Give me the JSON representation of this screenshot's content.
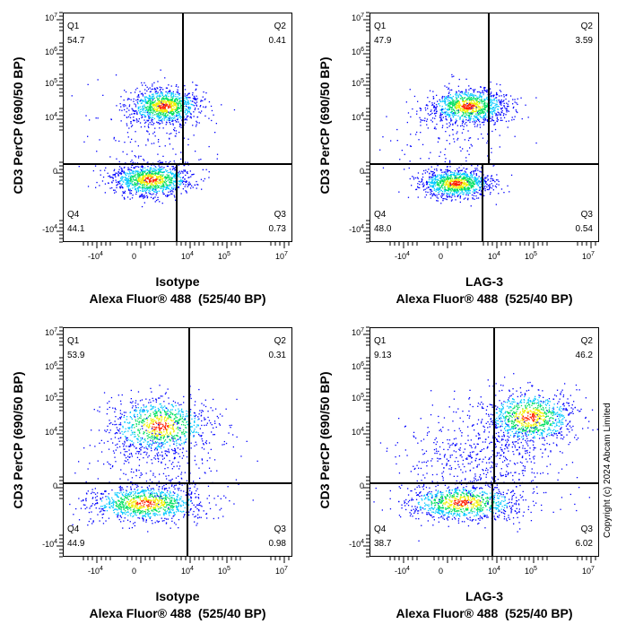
{
  "chart_data": [
    {
      "type": "scatter",
      "subtype": "flow-cytometry-density-plot",
      "xlabel": "Isotype",
      "xlabel2": "Alexa Fluor® 488  (525/40 BP)",
      "ylabel": "CD3 PerCP (690/50 BP)",
      "x_scale": "biexponential",
      "y_scale": "biexponential",
      "quadrants": [
        {
          "name": "Q1",
          "value": "54.7"
        },
        {
          "name": "Q2",
          "value": "0.41"
        },
        {
          "name": "Q3",
          "value": "0.73"
        },
        {
          "name": "Q4",
          "value": "44.1"
        }
      ]
    },
    {
      "type": "scatter",
      "subtype": "flow-cytometry-density-plot",
      "xlabel": "LAG-3",
      "xlabel2": "Alexa Fluor® 488  (525/40 BP)",
      "ylabel": "CD3 PerCP (690/50 BP)",
      "x_scale": "biexponential",
      "y_scale": "biexponential",
      "quadrants": [
        {
          "name": "Q1",
          "value": "47.9"
        },
        {
          "name": "Q2",
          "value": "3.59"
        },
        {
          "name": "Q3",
          "value": "0.54"
        },
        {
          "name": "Q4",
          "value": "48.0"
        }
      ]
    },
    {
      "type": "scatter",
      "subtype": "flow-cytometry-density-plot",
      "xlabel": "Isotype",
      "xlabel2": "Alexa Fluor® 488  (525/40 BP)",
      "ylabel": "CD3 PerCP (690/50 BP)",
      "x_scale": "biexponential",
      "y_scale": "biexponential",
      "quadrants": [
        {
          "name": "Q1",
          "value": "53.9"
        },
        {
          "name": "Q2",
          "value": "0.31"
        },
        {
          "name": "Q3",
          "value": "0.98"
        },
        {
          "name": "Q4",
          "value": "44.9"
        }
      ]
    },
    {
      "type": "scatter",
      "subtype": "flow-cytometry-density-plot",
      "xlabel": "LAG-3",
      "xlabel2": "Alexa Fluor® 488  (525/40 BP)",
      "ylabel": "CD3 PerCP (690/50 BP)",
      "x_scale": "biexponential",
      "y_scale": "biexponential",
      "quadrants": [
        {
          "name": "Q1",
          "value": "9.13"
        },
        {
          "name": "Q2",
          "value": "46.2"
        },
        {
          "name": "Q3",
          "value": "6.02"
        },
        {
          "name": "Q4",
          "value": "38.7"
        }
      ]
    }
  ],
  "x_ticks": [
    {
      "base": "-10",
      "exp": "4"
    },
    {
      "base": "0",
      "exp": ""
    },
    {
      "base": "10",
      "exp": "4"
    },
    {
      "base": "10",
      "exp": "5"
    },
    {
      "base": "10",
      "exp": "7"
    }
  ],
  "y_ticks": [
    {
      "base": "10",
      "exp": "7"
    },
    {
      "base": "10",
      "exp": "6"
    },
    {
      "base": "10",
      "exp": "5"
    },
    {
      "base": "10",
      "exp": "4"
    },
    {
      "base": "0",
      "exp": ""
    },
    {
      "base": "-10",
      "exp": "4"
    }
  ],
  "density_colors": [
    "#0000ff",
    "#00c8ff",
    "#00e060",
    "#f0f000",
    "#ff2000"
  ],
  "copyright": "Copyright (c) 2024 Abcam Limited"
}
